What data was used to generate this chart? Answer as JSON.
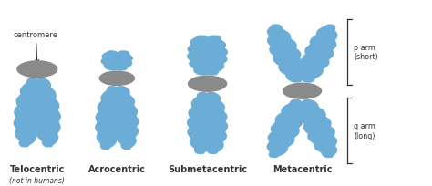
{
  "background_color": "#ffffff",
  "chromosome_color": "#6badd6",
  "centromere_color": "#8a8a8a",
  "text_color": "#333333",
  "title_labels": [
    "Telocentric",
    "Acrocentric",
    "Submetacentric",
    "Metacentric"
  ],
  "subtitle_label": "(not in humans)",
  "centromere_label": "centromere",
  "p_arm_label": "p arm\n(short)",
  "q_arm_label": "q arm\n(long)",
  "figsize": [
    4.74,
    2.05
  ],
  "dpi": 100
}
